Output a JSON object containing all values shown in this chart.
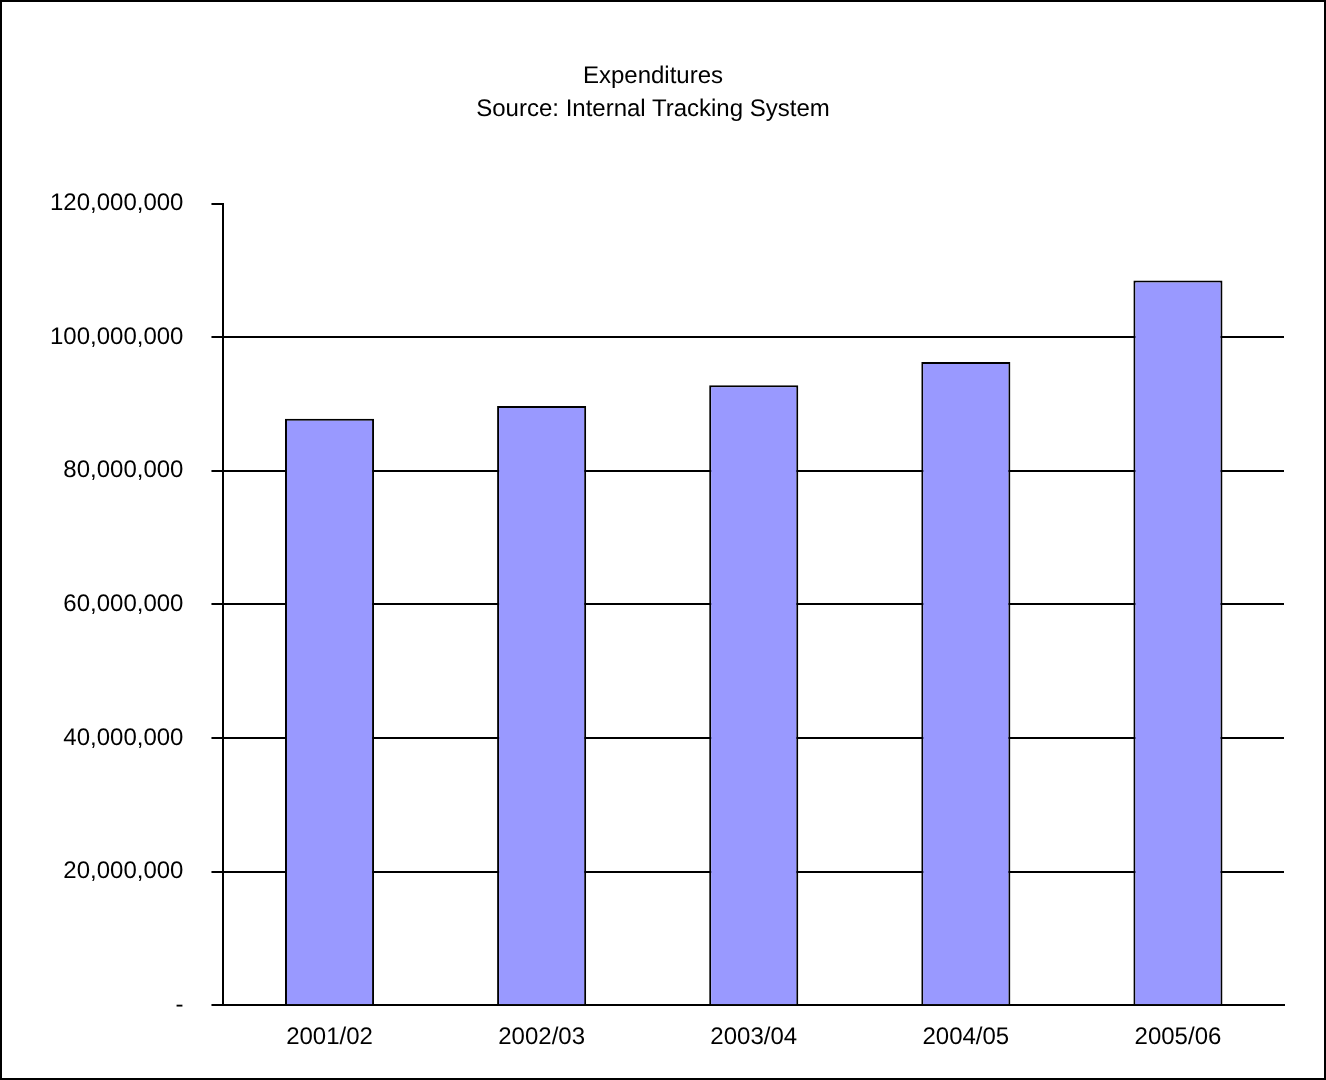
{
  "chart_data": {
    "type": "bar",
    "title": "Expenditures",
    "subtitle": "Source: Internal Tracking System",
    "categories": [
      "2001/02",
      "2002/03",
      "2003/04",
      "2004/05",
      "2005/06"
    ],
    "values": [
      87800000,
      89700000,
      92800000,
      96300000,
      108500000
    ],
    "color": "#9999ff",
    "ylim": [
      0,
      120000000
    ],
    "yticks": [
      {
        "value": 0,
        "label": "-"
      },
      {
        "value": 20000000,
        "label": "20,000,000"
      },
      {
        "value": 40000000,
        "label": "40,000,000"
      },
      {
        "value": 60000000,
        "label": "60,000,000"
      },
      {
        "value": 80000000,
        "label": "80,000,000"
      },
      {
        "value": 100000000,
        "label": "100,000,000"
      },
      {
        "value": 120000000,
        "label": "120,000,000"
      }
    ],
    "grid": "y",
    "legend": false
  }
}
